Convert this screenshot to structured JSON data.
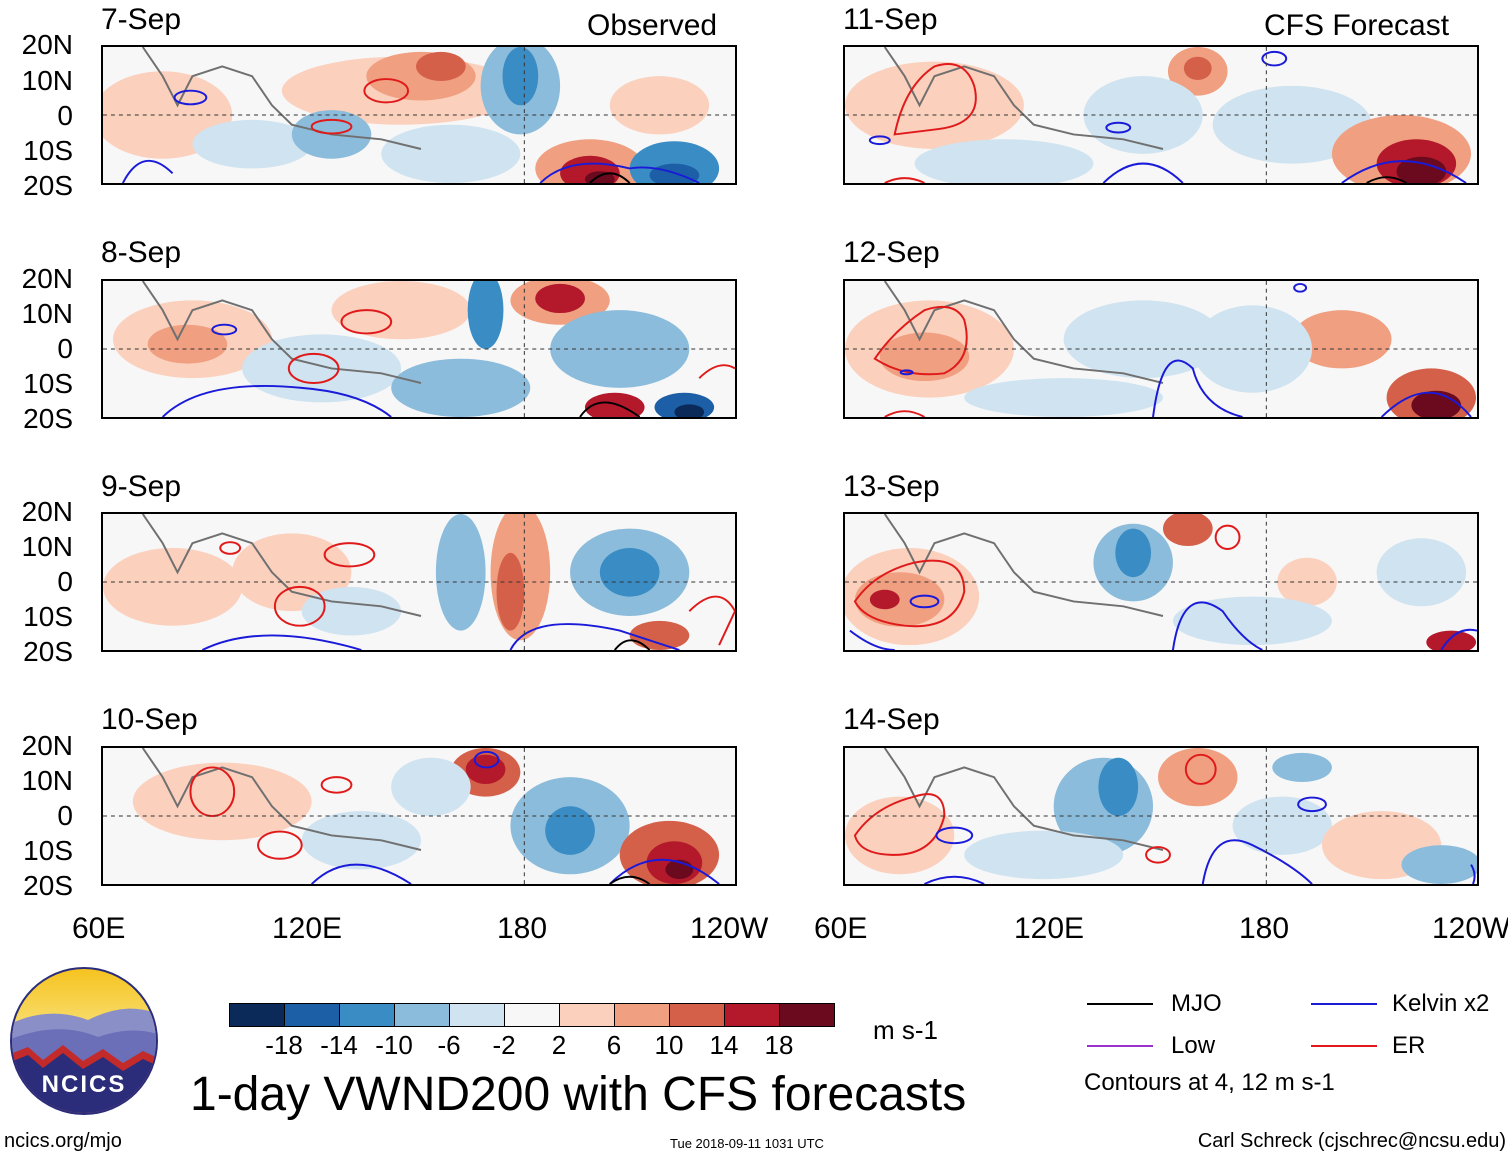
{
  "panels": [
    {
      "date": "7-Sep",
      "corner": "Observed"
    },
    {
      "date": "8-Sep",
      "corner": ""
    },
    {
      "date": "9-Sep",
      "corner": ""
    },
    {
      "date": "10-Sep",
      "corner": ""
    },
    {
      "date": "11-Sep",
      "corner": "CFS Forecast"
    },
    {
      "date": "12-Sep",
      "corner": ""
    },
    {
      "date": "13-Sep",
      "corner": ""
    },
    {
      "date": "14-Sep",
      "corner": ""
    }
  ],
  "lat_labels": [
    "20N",
    "10N",
    "0",
    "10S",
    "20S"
  ],
  "lon_labels": [
    "60E",
    "120E",
    "180",
    "120W"
  ],
  "colorbar": {
    "ticks": [
      "-18",
      "-14",
      "-10",
      "-6",
      "-2",
      "2",
      "6",
      "10",
      "14",
      "18"
    ],
    "colors": [
      "#0b2a5a",
      "#1d5fa6",
      "#3a8cc4",
      "#8cbcdb",
      "#cfe3f0",
      "#f7f7f7",
      "#fbd0bd",
      "#f09f80",
      "#d5604a",
      "#b3192b",
      "#6b0a1f"
    ],
    "units": "m s-1"
  },
  "legend": {
    "items": [
      {
        "label": "MJO",
        "color": "#000000"
      },
      {
        "label": "Low",
        "color": "#9933cc"
      },
      {
        "label": "Kelvin x2",
        "color": "#1a1ad9"
      },
      {
        "label": "ER",
        "color": "#e01a1a"
      }
    ],
    "contours_note": "Contours at 4, 12 m s-1"
  },
  "title": "1-day VWND200 with CFS forecasts",
  "logo_text": "NCICS",
  "footer": {
    "url": "ncics.org/mjo",
    "timestamp": "Tue 2018-09-11 1031 UTC",
    "author": "Carl Schreck (cjschrec@ncsu.edu)"
  }
}
